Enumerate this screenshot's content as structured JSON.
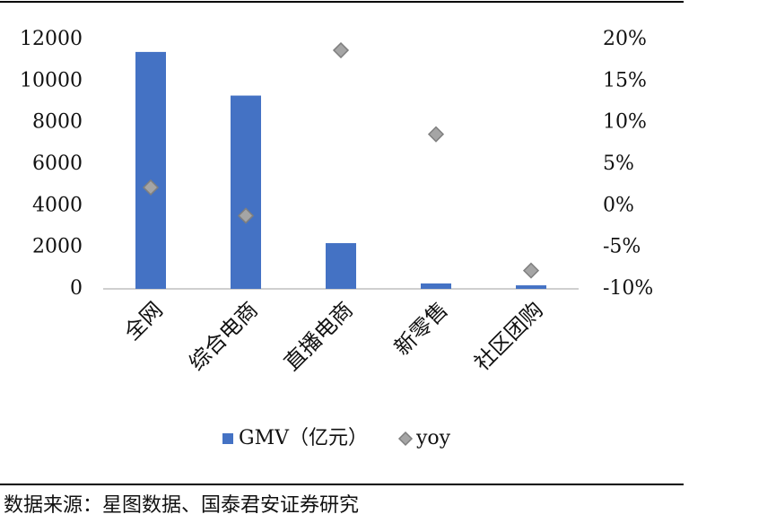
{
  "chart_data": {
    "type": "bar_scatter",
    "categories": [
      "全网",
      "综合电商",
      "直播电商",
      "新零售",
      "社区团购"
    ],
    "series": [
      {
        "name": "GMV（亿元）",
        "type": "bar",
        "color": "#4472c4",
        "values": [
          11400,
          9300,
          2200,
          260,
          170
        ]
      },
      {
        "name": "yoy",
        "type": "scatter",
        "axis": "y2",
        "color": "#a5a5a5",
        "values": [
          2.2,
          -1.2,
          18.7,
          8.6,
          -7.8
        ]
      }
    ],
    "ylim": [
      0,
      12000
    ],
    "yticks": [
      0,
      2000,
      4000,
      6000,
      8000,
      10000,
      12000
    ],
    "y2lim": [
      -10,
      20
    ],
    "y2ticks": [
      {
        "value": -10,
        "label": "-10%"
      },
      {
        "value": -5,
        "label": "-5%"
      },
      {
        "value": 0,
        "label": "0%"
      },
      {
        "value": 5,
        "label": "5%"
      },
      {
        "value": 10,
        "label": "10%"
      },
      {
        "value": 15,
        "label": "15%"
      },
      {
        "value": 20,
        "label": "20%"
      }
    ],
    "legend": "bottom",
    "source": "数据来源：星图数据、国泰君安证券研究"
  }
}
